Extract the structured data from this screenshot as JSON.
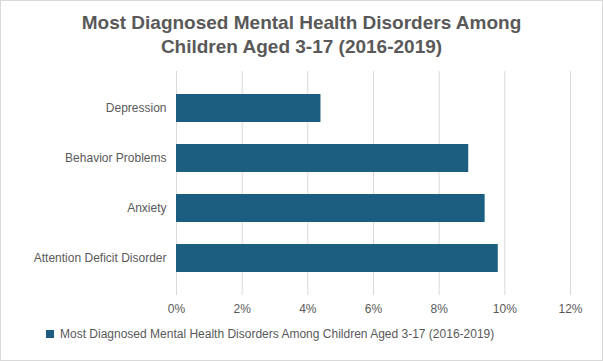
{
  "chart_data": {
    "type": "bar",
    "orientation": "horizontal",
    "title": "Most Diagnosed Mental Health Disorders Among Children Aged 3-17 (2016-2019)",
    "categories": [
      "Depression",
      "Behavior Problems",
      "Anxiety",
      "Attention Deficit Disorder"
    ],
    "series": [
      {
        "name": "Most Diagnosed Mental Health Disorders Among Children Aged 3-17 (2016-2019)",
        "color": "#1b5e80",
        "values": [
          4.4,
          8.9,
          9.4,
          9.8
        ]
      }
    ],
    "xlim": [
      0,
      12
    ],
    "xticks": [
      {
        "value": 0,
        "label": "0%"
      },
      {
        "value": 2,
        "label": "2%"
      },
      {
        "value": 4,
        "label": "4%"
      },
      {
        "value": 6,
        "label": "6%"
      },
      {
        "value": 8,
        "label": "8%"
      },
      {
        "value": 10,
        "label": "10%"
      },
      {
        "value": 12,
        "label": "12%"
      }
    ],
    "grid": true,
    "legend": "bottom"
  }
}
